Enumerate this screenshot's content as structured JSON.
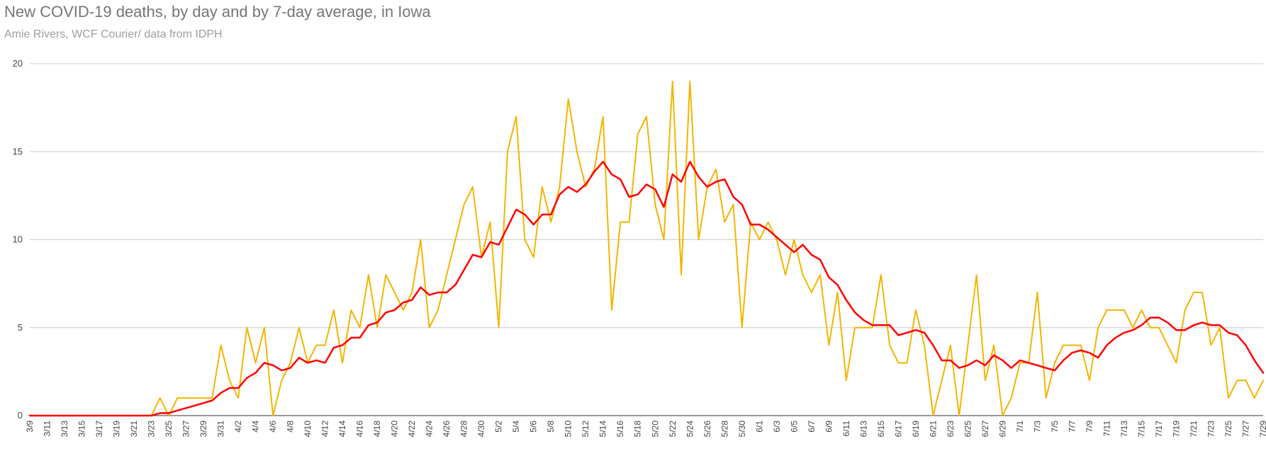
{
  "header": {
    "title": "New COVID-19 deaths, by day and by 7-day average, in Iowa",
    "subtitle": "Amie Rivers, WCF Courier/ data from IDPH"
  },
  "chart_data": {
    "type": "line",
    "title": "New COVID-19 deaths, by day and by 7-day average, in Iowa",
    "subtitle": "Amie Rivers, WCF Courier/ data from IDPH",
    "xlabel": "",
    "ylabel": "",
    "ylim": [
      0,
      20
    ],
    "yticks": [
      0,
      5,
      10,
      15,
      20
    ],
    "grid": true,
    "legend": "none",
    "x": [
      "3/9",
      "3/10",
      "3/11",
      "3/12",
      "3/13",
      "3/14",
      "3/15",
      "3/16",
      "3/17",
      "3/18",
      "3/19",
      "3/20",
      "3/21",
      "3/22",
      "3/23",
      "3/24",
      "3/25",
      "3/26",
      "3/27",
      "3/28",
      "3/29",
      "3/30",
      "3/31",
      "4/1",
      "4/2",
      "4/3",
      "4/4",
      "4/5",
      "4/6",
      "4/7",
      "4/8",
      "4/9",
      "4/10",
      "4/11",
      "4/12",
      "4/13",
      "4/14",
      "4/15",
      "4/16",
      "4/17",
      "4/18",
      "4/19",
      "4/20",
      "4/21",
      "4/22",
      "4/23",
      "4/24",
      "4/25",
      "4/26",
      "4/27",
      "4/28",
      "4/29",
      "4/30",
      "5/1",
      "5/2",
      "5/3",
      "5/4",
      "5/5",
      "5/6",
      "5/7",
      "5/8",
      "5/9",
      "5/10",
      "5/11",
      "5/12",
      "5/13",
      "5/14",
      "5/15",
      "5/16",
      "5/17",
      "5/18",
      "5/19",
      "5/20",
      "5/21",
      "5/22",
      "5/23",
      "5/24",
      "5/25",
      "5/26",
      "5/27",
      "5/28",
      "5/29",
      "5/30",
      "5/31",
      "6/1",
      "6/2",
      "6/3",
      "6/4",
      "6/5",
      "6/6",
      "6/7",
      "6/8",
      "6/9",
      "6/10",
      "6/11",
      "6/12",
      "6/13",
      "6/14",
      "6/15",
      "6/16",
      "6/17",
      "6/18",
      "6/19",
      "6/20",
      "6/21",
      "6/22",
      "6/23",
      "6/24",
      "6/25",
      "6/26",
      "6/27",
      "6/28",
      "6/29",
      "6/30",
      "7/1",
      "7/2",
      "7/3",
      "7/4",
      "7/5",
      "7/6",
      "7/7",
      "7/8",
      "7/9",
      "7/10",
      "7/11",
      "7/12",
      "7/13",
      "7/14",
      "7/15",
      "7/16",
      "7/17",
      "7/18",
      "7/19",
      "7/20",
      "7/21",
      "7/22",
      "7/23",
      "7/24",
      "7/25",
      "7/26",
      "7/27",
      "7/28",
      "7/29"
    ],
    "x_tick_labels": [
      "3/9",
      "3/11",
      "3/13",
      "3/15",
      "3/17",
      "3/19",
      "3/21",
      "3/23",
      "3/25",
      "3/27",
      "3/29",
      "3/31",
      "4/2",
      "4/4",
      "4/6",
      "4/8",
      "4/10",
      "4/12",
      "4/14",
      "4/16",
      "4/18",
      "4/20",
      "4/22",
      "4/24",
      "4/26",
      "4/28",
      "4/30",
      "5/2",
      "5/4",
      "5/6",
      "5/8",
      "5/10",
      "5/12",
      "5/14",
      "5/16",
      "5/18",
      "5/20",
      "5/22",
      "5/24",
      "5/26",
      "5/28",
      "5/30",
      "6/1",
      "6/3",
      "6/5",
      "6/7",
      "6/9",
      "6/11",
      "6/13",
      "6/15",
      "6/17",
      "6/19",
      "6/21",
      "6/23",
      "6/25",
      "6/27",
      "6/29",
      "7/1",
      "7/3",
      "7/5",
      "7/7",
      "7/9",
      "7/11",
      "7/13",
      "7/15",
      "7/17",
      "7/19",
      "7/21",
      "7/23",
      "7/25",
      "7/27",
      "7/29"
    ],
    "series": [
      {
        "color": "#f4b400",
        "values": [
          0,
          0,
          0,
          0,
          0,
          0,
          0,
          0,
          0,
          0,
          0,
          0,
          0,
          0,
          0,
          1,
          0,
          1,
          1,
          1,
          1,
          1,
          4,
          2,
          1,
          5,
          3,
          5,
          0,
          2,
          3,
          5,
          3,
          4,
          4,
          6,
          3,
          6,
          5,
          8,
          5,
          8,
          7,
          6,
          7,
          10,
          5,
          6,
          8,
          10,
          12,
          13,
          9,
          11,
          5,
          15,
          17,
          10,
          9,
          13,
          11,
          13,
          18,
          15,
          13,
          14,
          17,
          6,
          11,
          11,
          16,
          17,
          12,
          10,
          19,
          8,
          19,
          10,
          13,
          14,
          11,
          12,
          5,
          11,
          10,
          11,
          10,
          8,
          10,
          8,
          7,
          8,
          4,
          7,
          2,
          5,
          5,
          5,
          8,
          4,
          3,
          3,
          6,
          4,
          0,
          2,
          4,
          0,
          4,
          8,
          2,
          4,
          0,
          1,
          3,
          3,
          7,
          1,
          3,
          4,
          4,
          4,
          2,
          5,
          6,
          6,
          6,
          5,
          6,
          5,
          5,
          4,
          3,
          6,
          7,
          7,
          4,
          5,
          1,
          2,
          2,
          1,
          2
        ]
      },
      {
        "color": "#ff0000",
        "values": [
          0,
          0,
          0,
          0,
          0,
          0,
          0,
          0,
          0,
          0,
          0,
          0,
          0,
          0,
          0,
          0.14,
          0.14,
          0.29,
          0.43,
          0.57,
          0.71,
          0.86,
          1.29,
          1.57,
          1.57,
          2.14,
          2.43,
          3,
          2.86,
          2.57,
          2.71,
          3.29,
          3,
          3.14,
          3,
          3.86,
          4,
          4.43,
          4.43,
          5.14,
          5.29,
          5.86,
          6,
          6.43,
          6.57,
          7.29,
          6.86,
          7,
          7,
          7.43,
          8.29,
          9.14,
          9,
          9.86,
          9.71,
          10.71,
          11.71,
          11.43,
          10.86,
          11.43,
          11.43,
          12.57,
          13,
          12.71,
          13.14,
          13.86,
          14.43,
          13.71,
          13.43,
          12.43,
          12.57,
          13.14,
          12.86,
          11.86,
          13.71,
          13.29,
          14.43,
          13.57,
          13,
          13.29,
          13.43,
          12.43,
          12,
          10.86,
          10.86,
          10.57,
          10.14,
          9.71,
          9.29,
          9.71,
          9.14,
          8.86,
          7.86,
          7.43,
          6.57,
          5.86,
          5.43,
          5.14,
          5.14,
          5.14,
          4.57,
          4.71,
          4.86,
          4.71,
          4,
          3.14,
          3.14,
          2.71,
          2.86,
          3.14,
          2.86,
          3.43,
          3.14,
          2.71,
          3.14,
          3,
          2.86,
          2.71,
          2.57,
          3.14,
          3.57,
          3.71,
          3.57,
          3.29,
          4,
          4.43,
          4.71,
          4.86,
          5.14,
          5.57,
          5.57,
          5.29,
          4.86,
          4.86,
          5.14,
          5.29,
          5.14,
          5.14,
          4.71,
          4.57,
          4,
          3.14,
          2.43
        ]
      }
    ]
  }
}
